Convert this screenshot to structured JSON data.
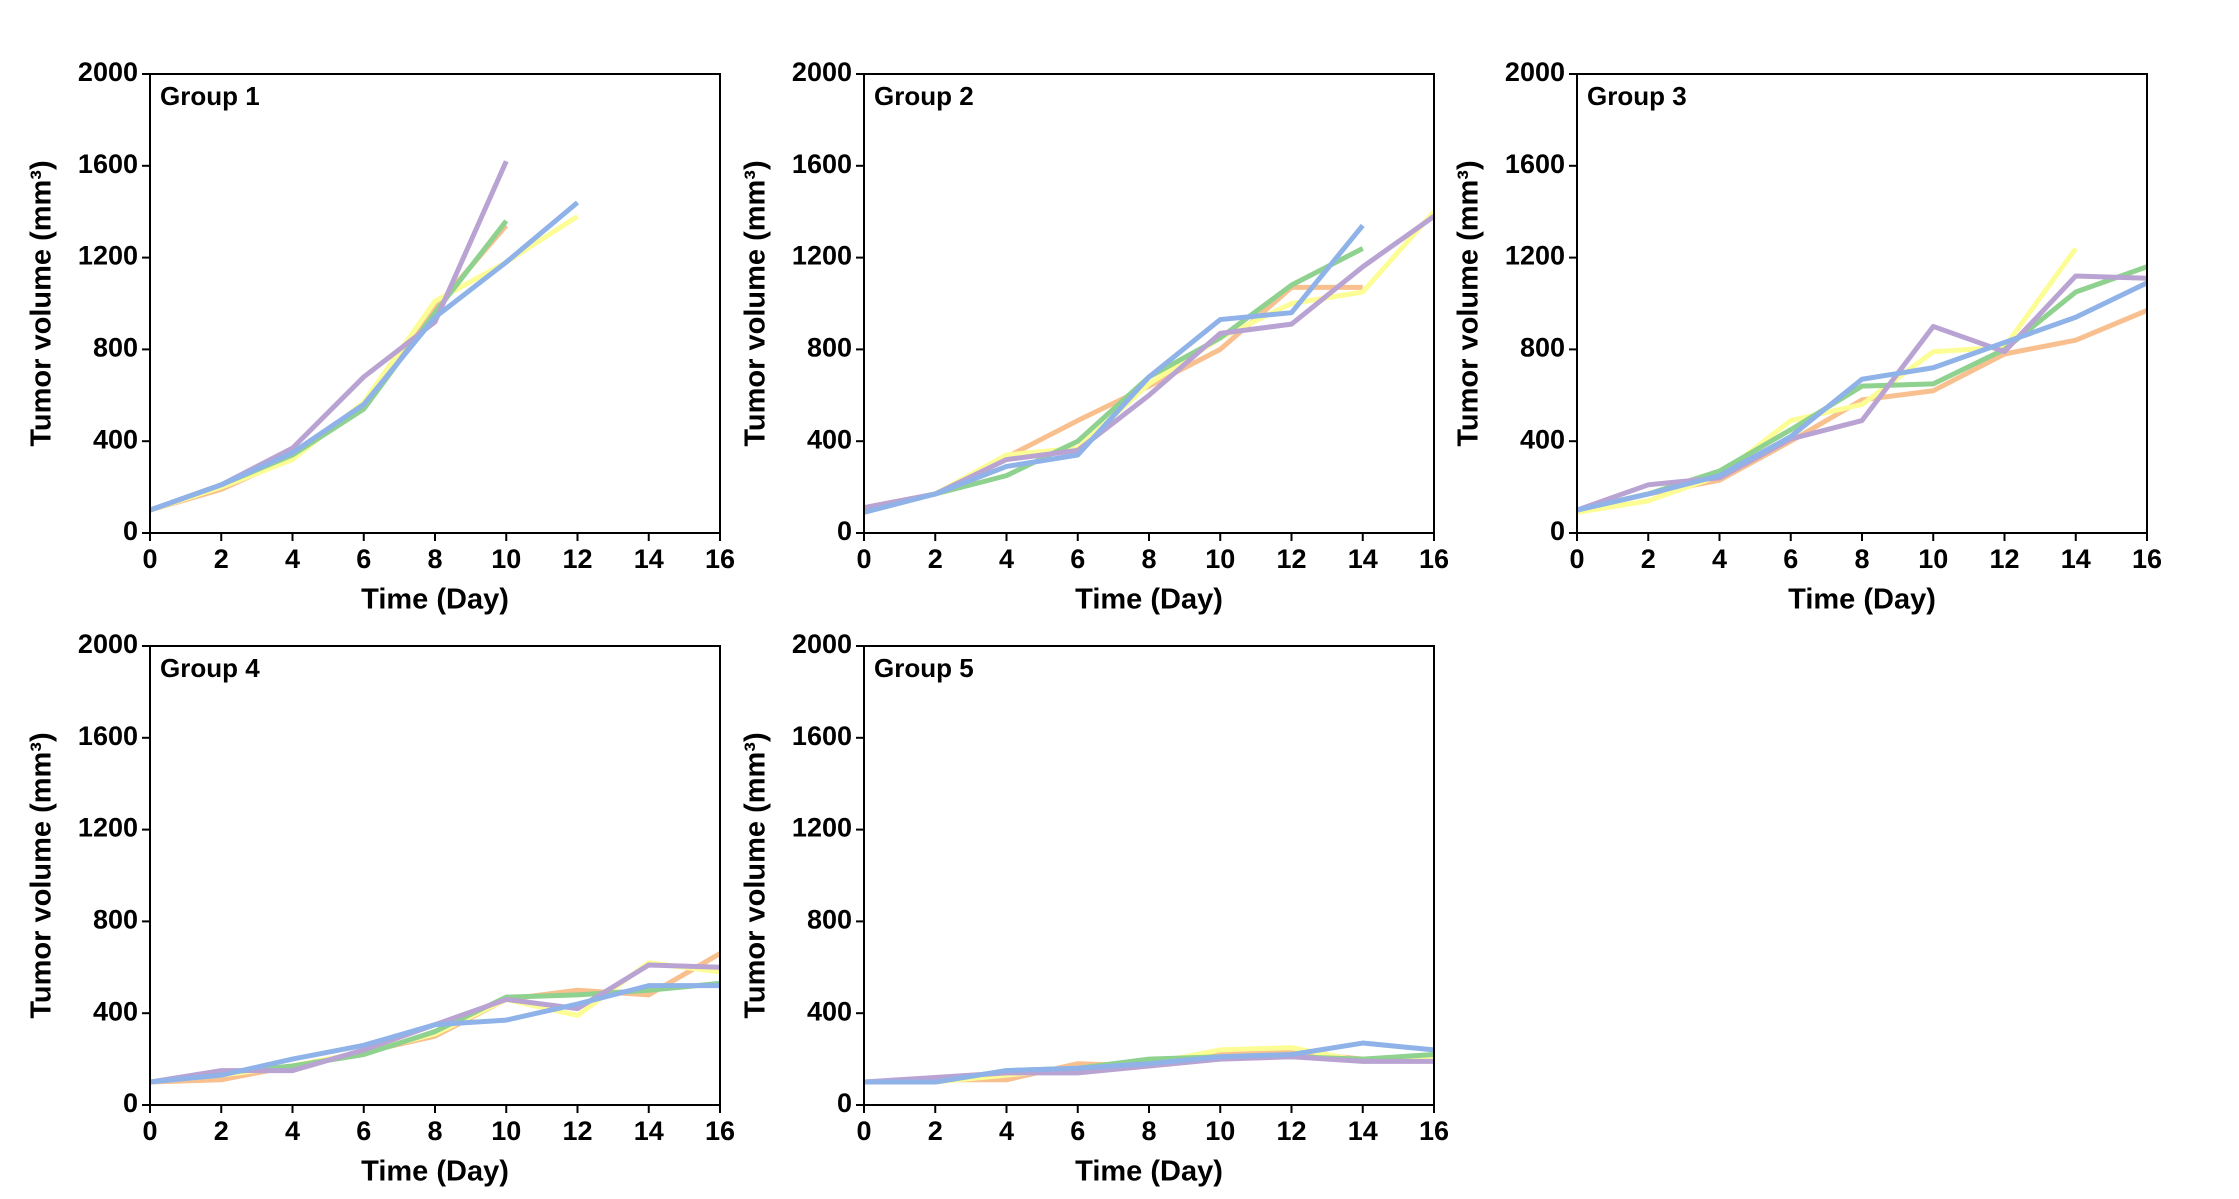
{
  "chart_data": [
    {
      "type": "line",
      "title": "Group 1",
      "xlabel": "Time (Day)",
      "ylabel": "Tumor volume (mm³)",
      "x": [
        0,
        2,
        4,
        6,
        8,
        10,
        12,
        14,
        16
      ],
      "xlim": [
        0,
        16
      ],
      "xticks": [
        0,
        2,
        4,
        6,
        8,
        10,
        12,
        14,
        16
      ],
      "ylim": [
        0,
        2000
      ],
      "yticks": [
        0,
        400,
        800,
        1200,
        1600,
        2000
      ],
      "series": [
        {
          "color": "#f9c08f",
          "values": [
            100,
            190,
            330,
            560,
            980,
            1340,
            null,
            null,
            null
          ]
        },
        {
          "color": "#fdfd96",
          "values": [
            100,
            200,
            320,
            570,
            1010,
            1180,
            1380,
            null,
            null
          ]
        },
        {
          "color": "#8fd18f",
          "values": [
            100,
            210,
            340,
            540,
            960,
            1360,
            null,
            null,
            null
          ]
        },
        {
          "color": "#b9a3d3",
          "values": [
            100,
            210,
            370,
            680,
            920,
            1620,
            null,
            null,
            null
          ]
        },
        {
          "color": "#8fb3e8",
          "values": [
            100,
            210,
            350,
            560,
            940,
            1180,
            1440,
            null,
            null
          ]
        }
      ]
    },
    {
      "type": "line",
      "title": "Group 2",
      "xlabel": "Time (Day)",
      "ylabel": "Tumor volume (mm³)",
      "x": [
        0,
        2,
        4,
        6,
        8,
        10,
        12,
        14,
        16
      ],
      "xlim": [
        0,
        16
      ],
      "xticks": [
        0,
        2,
        4,
        6,
        8,
        10,
        12,
        14,
        16
      ],
      "ylim": [
        0,
        2000
      ],
      "yticks": [
        0,
        400,
        800,
        1200,
        1600,
        2000
      ],
      "series": [
        {
          "color": "#f9c08f",
          "values": [
            110,
            170,
            330,
            490,
            640,
            800,
            1070,
            1070,
            null
          ]
        },
        {
          "color": "#fdfd96",
          "values": [
            100,
            170,
            340,
            370,
            650,
            850,
            1000,
            1050,
            1400
          ]
        },
        {
          "color": "#8fd18f",
          "values": [
            100,
            170,
            250,
            400,
            680,
            850,
            1080,
            1240,
            null
          ]
        },
        {
          "color": "#b9a3d3",
          "values": [
            110,
            170,
            320,
            360,
            600,
            870,
            910,
            1160,
            1380
          ]
        },
        {
          "color": "#8fb3e8",
          "values": [
            90,
            170,
            290,
            340,
            680,
            930,
            960,
            1340,
            null
          ]
        }
      ]
    },
    {
      "type": "line",
      "title": "Group 3",
      "xlabel": "Time (Day)",
      "ylabel": "Tumor volume (mm³)",
      "x": [
        0,
        2,
        4,
        6,
        8,
        10,
        12,
        14,
        16
      ],
      "xlim": [
        0,
        16
      ],
      "xticks": [
        0,
        2,
        4,
        6,
        8,
        10,
        12,
        14,
        16
      ],
      "ylim": [
        0,
        2000
      ],
      "yticks": [
        0,
        400,
        800,
        1200,
        1600,
        2000
      ],
      "series": [
        {
          "color": "#f9c08f",
          "values": [
            100,
            170,
            230,
            400,
            580,
            620,
            780,
            840,
            970
          ]
        },
        {
          "color": "#fdfd96",
          "values": [
            90,
            140,
            250,
            490,
            560,
            790,
            810,
            1240,
            null
          ]
        },
        {
          "color": "#8fd18f",
          "values": [
            100,
            170,
            270,
            450,
            640,
            650,
            800,
            1050,
            1160
          ]
        },
        {
          "color": "#b9a3d3",
          "values": [
            100,
            210,
            240,
            410,
            490,
            900,
            790,
            1120,
            1110
          ]
        },
        {
          "color": "#8fb3e8",
          "values": [
            100,
            170,
            250,
            420,
            670,
            720,
            830,
            940,
            1090
          ]
        }
      ]
    },
    {
      "type": "line",
      "title": "Group 4",
      "xlabel": "Time (Day)",
      "ylabel": "Tumor volume (mm³)",
      "x": [
        0,
        2,
        4,
        6,
        8,
        10,
        12,
        14,
        16
      ],
      "xlim": [
        0,
        16
      ],
      "xticks": [
        0,
        2,
        4,
        6,
        8,
        10,
        12,
        14,
        16
      ],
      "ylim": [
        0,
        2000
      ],
      "yticks": [
        0,
        400,
        800,
        1200,
        1600,
        2000
      ],
      "series": [
        {
          "color": "#f9c08f",
          "values": [
            100,
            110,
            170,
            230,
            300,
            460,
            500,
            480,
            660
          ]
        },
        {
          "color": "#fdfd96",
          "values": [
            100,
            130,
            170,
            230,
            310,
            460,
            390,
            620,
            580
          ]
        },
        {
          "color": "#8fd18f",
          "values": [
            100,
            140,
            170,
            220,
            320,
            470,
            480,
            500,
            530
          ]
        },
        {
          "color": "#b9a3d3",
          "values": [
            100,
            150,
            150,
            240,
            350,
            460,
            420,
            610,
            600
          ]
        },
        {
          "color": "#8fb3e8",
          "values": [
            100,
            130,
            200,
            260,
            350,
            370,
            440,
            520,
            520
          ]
        }
      ]
    },
    {
      "type": "line",
      "title": "Group 5",
      "xlabel": "Time (Day)",
      "ylabel": "Tumor volume (mm³)",
      "x": [
        0,
        2,
        4,
        6,
        8,
        10,
        12,
        14,
        16
      ],
      "xlim": [
        0,
        16
      ],
      "xticks": [
        0,
        2,
        4,
        6,
        8,
        10,
        12,
        14,
        16
      ],
      "ylim": [
        0,
        2000
      ],
      "yticks": [
        0,
        400,
        800,
        1200,
        1600,
        2000
      ],
      "series": [
        {
          "color": "#f9c08f",
          "values": [
            100,
            110,
            110,
            180,
            170,
            230,
            230,
            200,
            210
          ]
        },
        {
          "color": "#fdfd96",
          "values": [
            100,
            100,
            130,
            160,
            180,
            240,
            250,
            190,
            200
          ]
        },
        {
          "color": "#8fd18f",
          "values": [
            100,
            100,
            150,
            160,
            200,
            210,
            210,
            200,
            220
          ]
        },
        {
          "color": "#b9a3d3",
          "values": [
            100,
            120,
            140,
            140,
            170,
            200,
            210,
            190,
            190
          ]
        },
        {
          "color": "#8fb3e8",
          "values": [
            100,
            100,
            150,
            160,
            180,
            210,
            220,
            270,
            240
          ]
        }
      ]
    }
  ]
}
